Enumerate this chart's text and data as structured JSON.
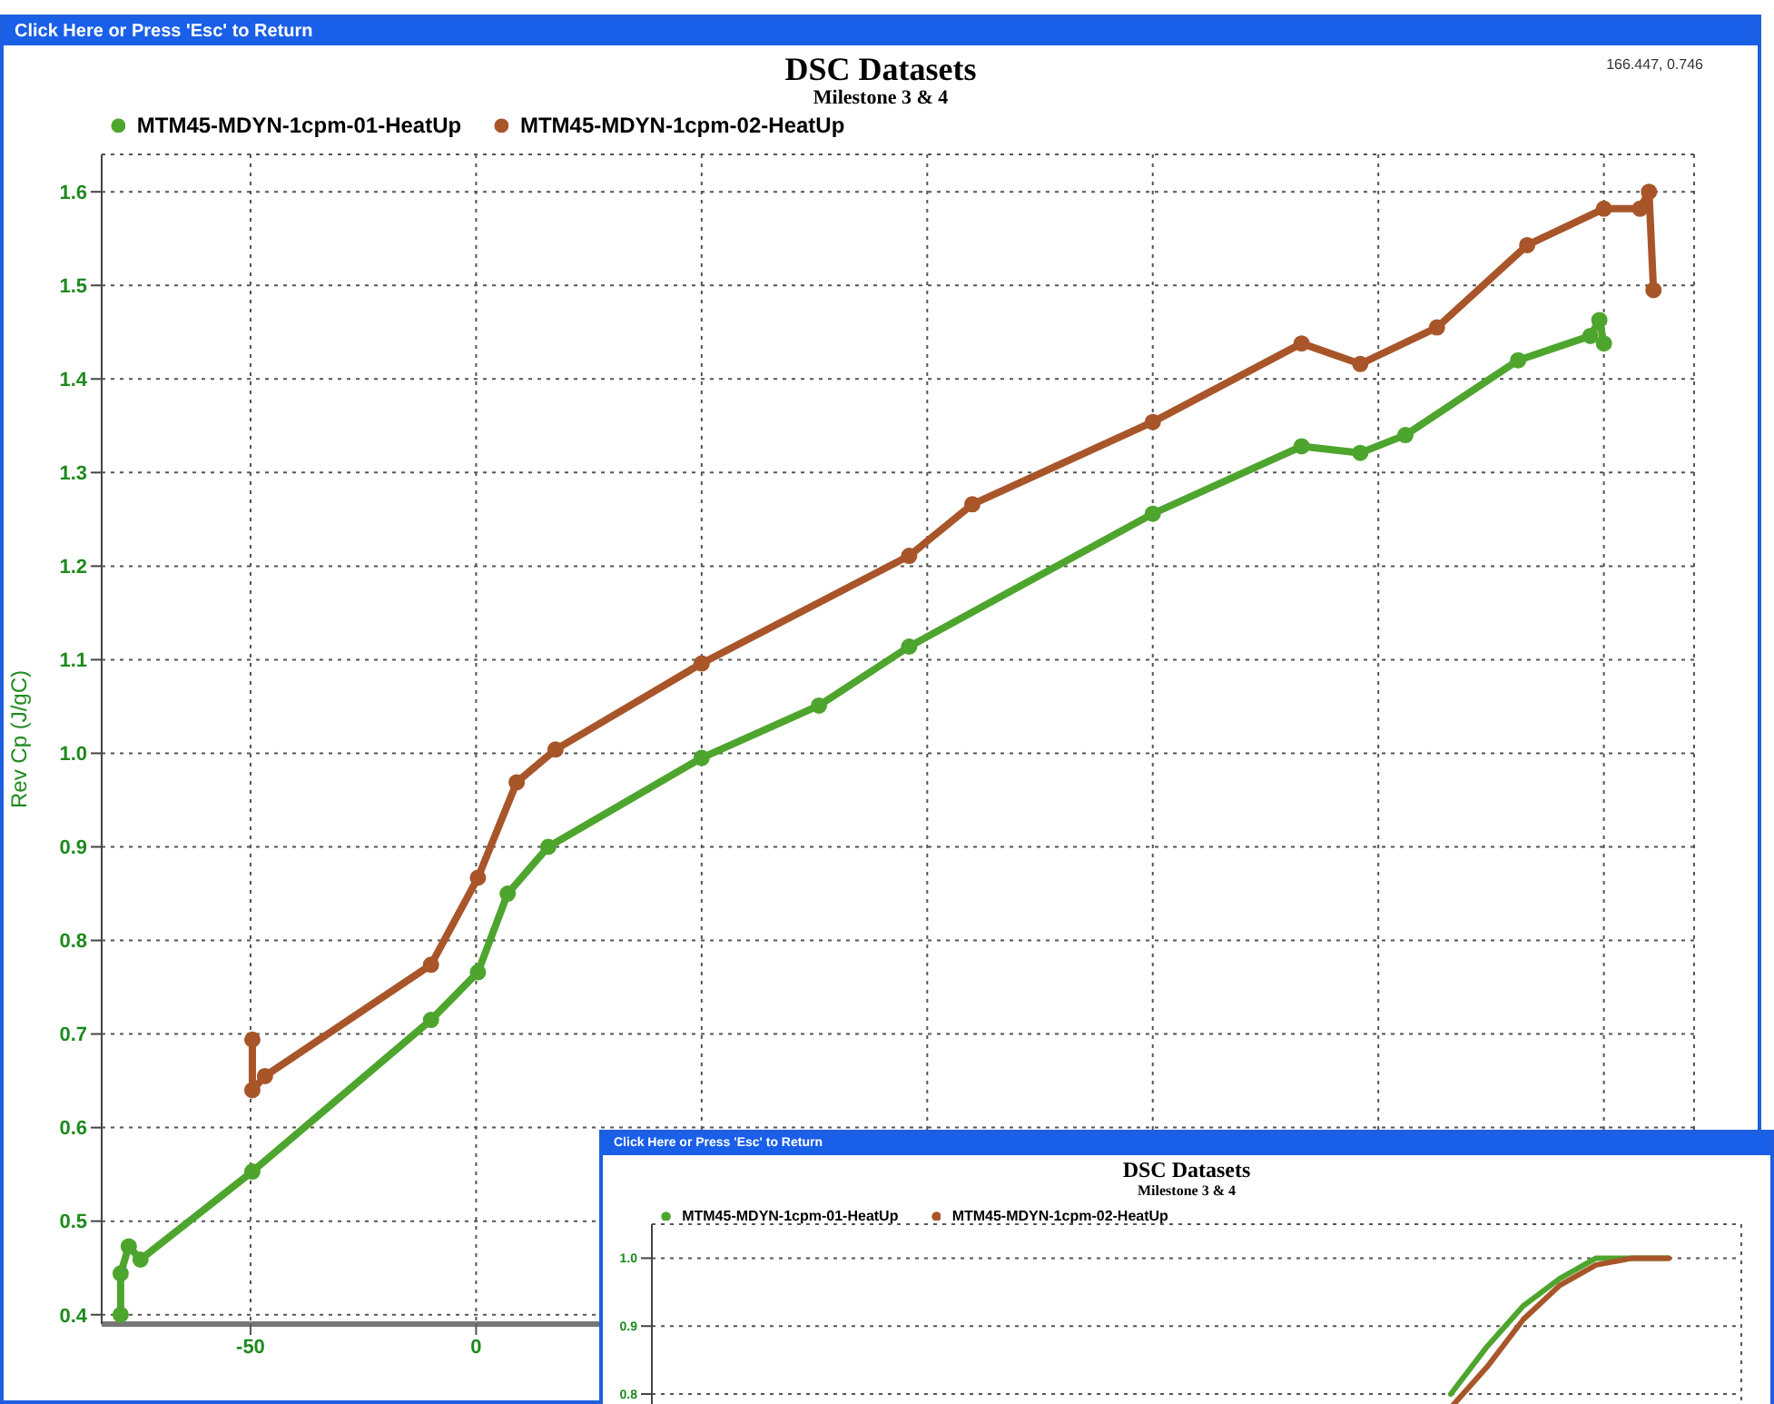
{
  "chart_data": [
    {
      "type": "line",
      "title": "DSC Datasets",
      "subtitle": "Milestone 3 & 4",
      "ylabel": "Rev Cp (J/gC)",
      "annotations": [
        "Click Here or Press 'Esc' to Return",
        "166.447, 0.746"
      ],
      "legend": "top left",
      "grid": true,
      "marker": "circle",
      "line_style": "solid",
      "xlim": [
        -83,
        270
      ],
      "xticks": [
        -50,
        0,
        {
          "value": 50,
          "label": null
        },
        {
          "value": 100,
          "label": null
        },
        {
          "value": 150,
          "label": null
        },
        {
          "value": 200,
          "label": null
        },
        {
          "value": 250,
          "label": null
        }
      ],
      "ylim": [
        0.39,
        1.64
      ],
      "yticks": [
        0.4,
        0.5,
        0.6,
        0.7,
        0.8,
        0.9,
        {
          "value": 1,
          "label": "1.0"
        },
        1.1,
        1.2,
        1.3,
        1.4,
        1.5,
        1.6
      ],
      "series": [
        {
          "name": "MTM45-MDYN-1cpm-01-HeatUp",
          "color": "#4ea52e",
          "x": [
            -78.8,
            -78.8,
            -77,
            -74.4,
            -49.6,
            -10,
            0.4,
            7,
            16,
            50,
            76,
            96,
            150,
            183,
            196,
            206,
            231,
            247,
            249,
            250
          ],
          "values": [
            0.4,
            0.444,
            0.473,
            0.459,
            0.553,
            0.715,
            0.766,
            0.85,
            0.9,
            0.995,
            1.051,
            1.114,
            1.256,
            1.328,
            1.321,
            1.34,
            1.42,
            1.446,
            1.463,
            1.438
          ]
        },
        {
          "name": "MTM45-MDYN-1cpm-02-HeatUp",
          "color": "#a8552a",
          "x": [
            -49.6,
            -49.6,
            -46.8,
            -10,
            0.4,
            9,
            17.6,
            50,
            96,
            110,
            150,
            183,
            196,
            213,
            233,
            250,
            258,
            260,
            261
          ],
          "values": [
            0.694,
            0.64,
            0.655,
            0.774,
            0.867,
            0.969,
            1.004,
            1.096,
            1.211,
            1.266,
            1.354,
            1.438,
            1.416,
            1.455,
            1.543,
            1.582,
            1.582,
            1.6,
            1.495
          ]
        }
      ]
    },
    {
      "type": "line",
      "title": "DSC Datasets",
      "subtitle": "Milestone 3 & 4",
      "annotations": [
        "Click Here or Press 'Esc' to Return"
      ],
      "legend": "top left",
      "grid": true,
      "marker": "none",
      "line_style": "solid",
      "tick_labels": "y",
      "categories": [
        null,
        null,
        null,
        null,
        null,
        null,
        null,
        null,
        null,
        null,
        null,
        null,
        null,
        null,
        null,
        null,
        null,
        null,
        null,
        null,
        null,
        null,
        null,
        null,
        null,
        null,
        null,
        null,
        null,
        null,
        null
      ],
      "ylim": [
        0.78,
        1.05
      ],
      "yticks": [
        0.8,
        0.9,
        {
          "value": 1,
          "label": "1.0"
        }
      ],
      "series": [
        {
          "name": "MTM45-MDYN-1cpm-01-HeatUp",
          "color": "#4ea52e",
          "values": [
            null,
            null,
            null,
            null,
            null,
            null,
            null,
            null,
            null,
            null,
            null,
            null,
            null,
            null,
            null,
            null,
            null,
            null,
            null,
            null,
            null,
            null,
            0.8,
            0.87,
            0.93,
            0.97,
            1.0,
            1.0,
            1.0,
            null,
            null
          ]
        },
        {
          "name": "MTM45-MDYN-1cpm-02-HeatUp",
          "color": "#a8552a",
          "values": [
            null,
            null,
            null,
            null,
            null,
            null,
            null,
            null,
            null,
            null,
            null,
            null,
            null,
            null,
            null,
            null,
            null,
            null,
            null,
            null,
            null,
            null,
            0.78,
            0.84,
            0.91,
            0.96,
            0.99,
            1.0,
            1.0,
            null,
            null
          ]
        }
      ]
    }
  ]
}
